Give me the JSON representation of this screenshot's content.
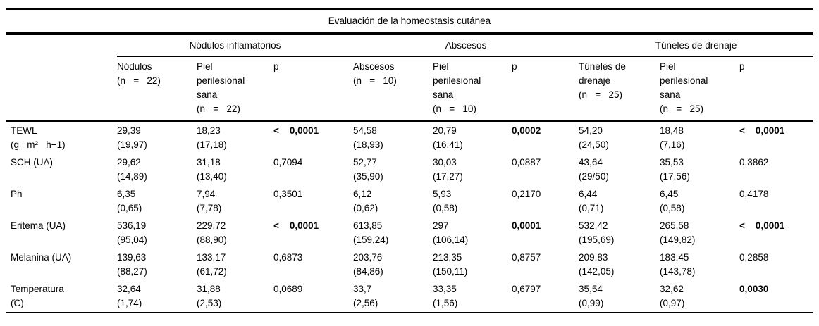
{
  "title": "Evaluación de la homeostasis cutánea",
  "table": {
    "groups": [
      {
        "label": "Nódulos inflamatorios"
      },
      {
        "label": "Abscesos"
      },
      {
        "label": "Túneles de drenaje"
      }
    ],
    "columns": [
      {
        "lines": [
          "Nódulos",
          "(n   =   22)"
        ]
      },
      {
        "lines": [
          "Piel",
          "perilesional",
          "sana",
          "(n   =   22)"
        ]
      },
      {
        "lines": [
          "p"
        ]
      },
      {
        "lines": [
          "Abscesos",
          "(n   =   10)"
        ]
      },
      {
        "lines": [
          "Piel",
          "perilesional",
          "sana",
          "(n   =   10)"
        ]
      },
      {
        "lines": [
          "p"
        ]
      },
      {
        "lines": [
          "Túneles de",
          "drenaje",
          "(n   =   25)"
        ]
      },
      {
        "lines": [
          "Piel",
          "perilesional",
          "sana",
          "(n   =   25)"
        ]
      },
      {
        "lines": [
          "p"
        ]
      }
    ],
    "rows": [
      {
        "label": [
          "TEWL",
          "(g   m²   h−1)"
        ],
        "cells": [
          {
            "v": "29,39",
            "sd": "(19,97)"
          },
          {
            "v": "18,23",
            "sd": "(17,18)"
          },
          {
            "v": "<    0,0001",
            "p": true,
            "bold": true
          },
          {
            "v": "54,58",
            "sd": "(18,93)"
          },
          {
            "v": "20,79",
            "sd": "(16,41)"
          },
          {
            "v": "0,0002",
            "p": true,
            "bold": true
          },
          {
            "v": "54,20",
            "sd": "(24,50)"
          },
          {
            "v": "18,48",
            "sd": "(7,16)"
          },
          {
            "v": "<    0,0001",
            "p": true,
            "bold": true
          }
        ]
      },
      {
        "label": [
          "SCH (UA)"
        ],
        "cells": [
          {
            "v": "29,62",
            "sd": "(14,89)"
          },
          {
            "v": "31,18",
            "sd": "(13,40)"
          },
          {
            "v": "0,7094",
            "p": true
          },
          {
            "v": "52,77",
            "sd": "(35,90)"
          },
          {
            "v": "30,03",
            "sd": "(17,27)"
          },
          {
            "v": "0,0887",
            "p": true
          },
          {
            "v": "43,64",
            "sd": "(29/50)"
          },
          {
            "v": "35,53",
            "sd": "(17,56)"
          },
          {
            "v": "0,3862",
            "p": true
          }
        ]
      },
      {
        "label": [
          "Ph"
        ],
        "cells": [
          {
            "v": "6,35",
            "sd": "(0,65)"
          },
          {
            "v": "7,94",
            "sd": "(7,78)"
          },
          {
            "v": "0,3501",
            "p": true
          },
          {
            "v": "6,12",
            "sd": "(0,62)"
          },
          {
            "v": "5,93",
            "sd": "(0,58)"
          },
          {
            "v": "0,2170",
            "p": true
          },
          {
            "v": "6,44",
            "sd": "(0,71)"
          },
          {
            "v": "6,45",
            "sd": "(0,58)"
          },
          {
            "v": "0,4178",
            "p": true
          }
        ]
      },
      {
        "label": [
          "Eritema (UA)"
        ],
        "cells": [
          {
            "v": "536,19",
            "sd": "(95,04)"
          },
          {
            "v": "229,72",
            "sd": "(88,90)"
          },
          {
            "v": "<    0,0001",
            "p": true,
            "bold": true
          },
          {
            "v": "613,85",
            "sd": "(159,24)"
          },
          {
            "v": "297",
            "sd": "(106,14)"
          },
          {
            "v": "0,0001",
            "p": true,
            "bold": true
          },
          {
            "v": "532,42",
            "sd": "(195,69)"
          },
          {
            "v": "265,58",
            "sd": "(149,82)"
          },
          {
            "v": "<    0,0001",
            "p": true,
            "bold": true
          }
        ]
      },
      {
        "label": [
          "Melanina (UA)"
        ],
        "cells": [
          {
            "v": "139,63",
            "sd": "(88,27)"
          },
          {
            "v": "133,17",
            "sd": "(61,72)"
          },
          {
            "v": "0,6873",
            "p": true
          },
          {
            "v": "203,76",
            "sd": "(84,86)"
          },
          {
            "v": "213,35",
            "sd": "(150,11)"
          },
          {
            "v": "0,8757",
            "p": true
          },
          {
            "v": "209,83",
            "sd": "(142,05)"
          },
          {
            "v": "183,45",
            "sd": "(143,78)"
          },
          {
            "v": "0,2858",
            "p": true
          }
        ]
      },
      {
        "label": [
          "Temperatura",
          "(̊C)"
        ],
        "cells": [
          {
            "v": "32,64",
            "sd": "(1,74)"
          },
          {
            "v": "31,88",
            "sd": "(2,53)"
          },
          {
            "v": "0,0689",
            "p": true
          },
          {
            "v": "33,7",
            "sd": "(2,56)"
          },
          {
            "v": "33,35",
            "sd": "(1,56)"
          },
          {
            "v": "0,6797",
            "p": true
          },
          {
            "v": "35,54",
            "sd": "(0,99)"
          },
          {
            "v": "32,62",
            "sd": "(0,97)"
          },
          {
            "v": "0,0030",
            "p": true,
            "bold": true
          }
        ]
      }
    ]
  }
}
